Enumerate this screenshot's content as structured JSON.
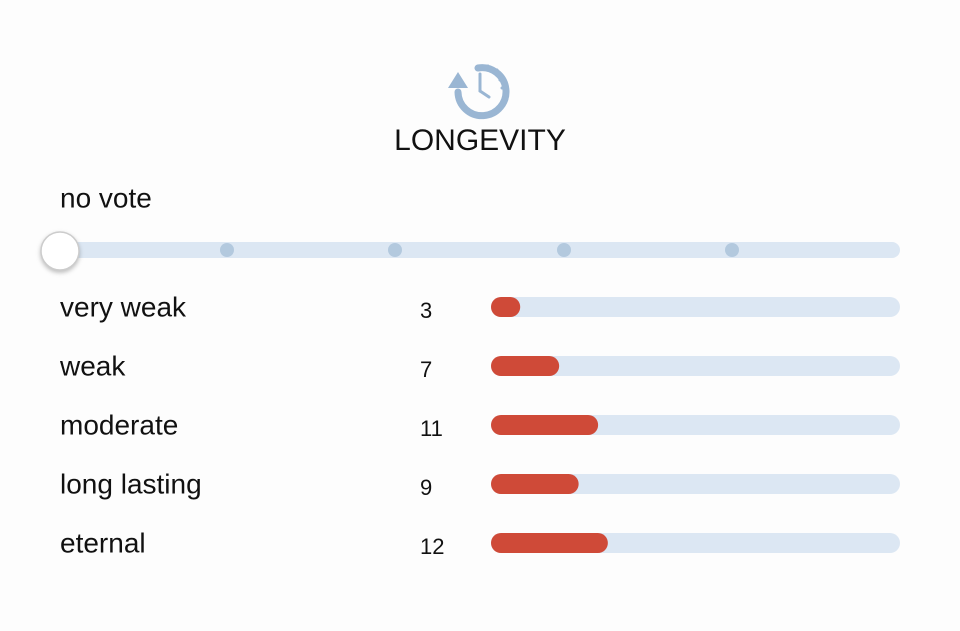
{
  "title": "LONGEVITY",
  "vote_status": "no vote",
  "rows": [
    {
      "label": "very weak",
      "count": 3
    },
    {
      "label": "weak",
      "count": 7
    },
    {
      "label": "moderate",
      "count": 11
    },
    {
      "label": "long lasting",
      "count": 9
    },
    {
      "label": "eternal",
      "count": 12
    }
  ]
}
